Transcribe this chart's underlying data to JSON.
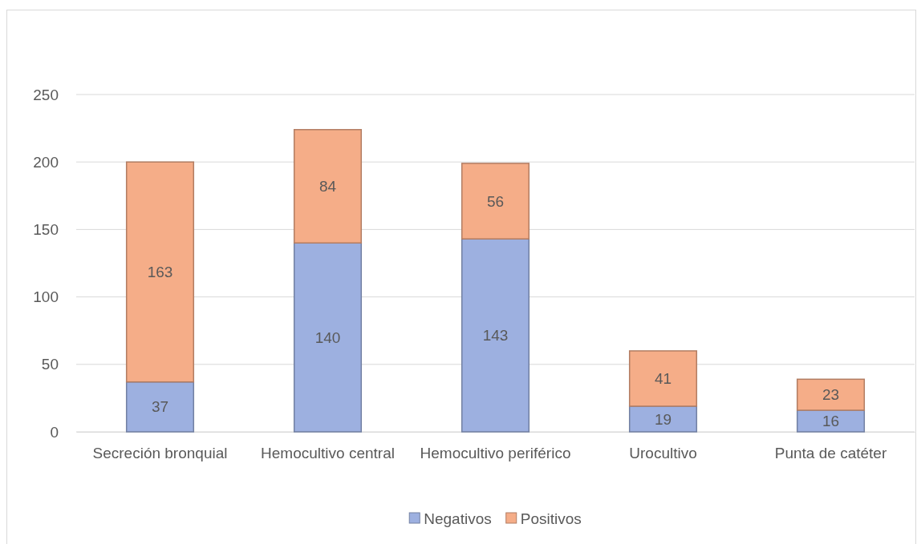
{
  "chart_data": {
    "type": "bar",
    "stacked": true,
    "categories": [
      "Secreción bronquial",
      "Hemocultivo central",
      "Hemocultivo periférico",
      "Urocultivo",
      "Punta de catéter"
    ],
    "series": [
      {
        "name": "Negativos",
        "color": "#9db0e0",
        "values": [
          37,
          140,
          143,
          19,
          16
        ]
      },
      {
        "name": "Positivos",
        "color": "#f5ad88",
        "values": [
          163,
          84,
          56,
          41,
          23
        ]
      }
    ],
    "ylim": [
      0,
      250
    ],
    "yticks": [
      0,
      50,
      100,
      150,
      200,
      250
    ],
    "grid": "y",
    "legend": "bottom",
    "data_labels": true
  }
}
